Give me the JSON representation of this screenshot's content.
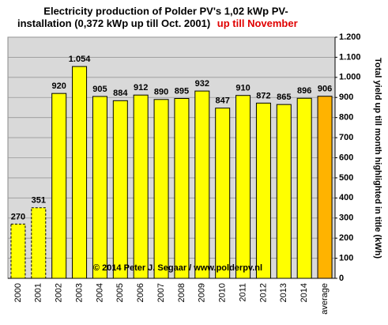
{
  "chart_data": {
    "type": "bar",
    "title_line1": "Electricity production  of Polder PV's 1,02 kWp PV-",
    "title_line2": "installation  (0,372 kWp up till Oct. 2001)",
    "title_highlight": "up till November",
    "y_axis_label": "Total yield up till month highlighted in title (kWh)",
    "watermark": "© 2014 Peter J. Segaar / www.polderpv.nl",
    "categories": [
      "2000",
      "2001",
      "2002",
      "2003",
      "2004",
      "2005",
      "2006",
      "2007",
      "2008",
      "2009",
      "2010",
      "2011",
      "2012",
      "2013",
      "2014",
      "average"
    ],
    "values": [
      270,
      351,
      920,
      1054,
      905,
      884,
      912,
      890,
      895,
      932,
      847,
      910,
      872,
      865,
      896,
      906
    ],
    "value_labels": [
      "270",
      "351",
      "920",
      "1.054",
      "905",
      "884",
      "912",
      "890",
      "895",
      "932",
      "847",
      "910",
      "872",
      "865",
      "896",
      "906"
    ],
    "colors": [
      "#ffff00",
      "#ffff00",
      "#ffff00",
      "#ffff00",
      "#ffff00",
      "#ffff00",
      "#ffff00",
      "#ffff00",
      "#ffff00",
      "#ffff00",
      "#ffff00",
      "#ffff00",
      "#ffff00",
      "#ffff00",
      "#ffff00",
      "#ffb300"
    ],
    "bar_borders": [
      "dashed",
      "dashed",
      "solid",
      "solid",
      "solid",
      "solid",
      "solid",
      "solid",
      "solid",
      "solid",
      "solid",
      "solid",
      "solid",
      "solid",
      "solid",
      "solid"
    ],
    "ylim": [
      0,
      1200
    ],
    "yticks": [
      0,
      100,
      200,
      300,
      400,
      500,
      600,
      700,
      800,
      900,
      {
        "value": 1000,
        "label": "1.000"
      },
      {
        "value": 1100,
        "label": "1.100"
      },
      {
        "value": 1200,
        "label": "1.200"
      }
    ],
    "grid": true
  }
}
